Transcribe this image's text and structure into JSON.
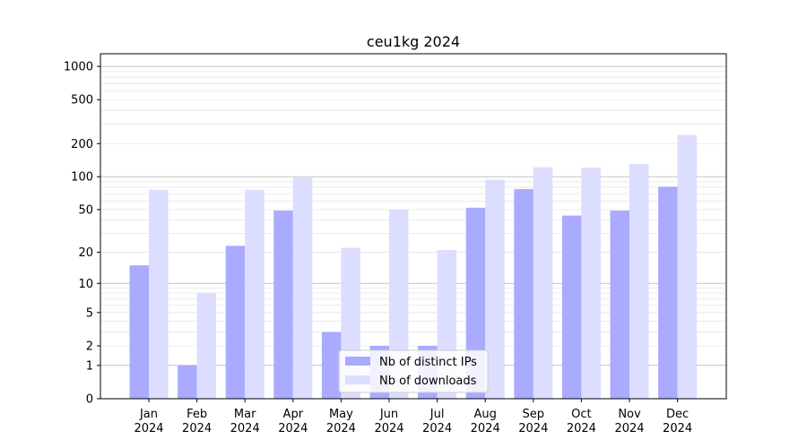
{
  "chart_data": {
    "type": "bar",
    "title": "ceu1kg 2024",
    "xlabel": "",
    "ylabel": "",
    "y_scale": "symlog",
    "ylim": [
      0,
      1300
    ],
    "y_ticks": [
      0,
      1,
      2,
      5,
      10,
      20,
      50,
      100,
      200,
      500,
      1000
    ],
    "categories": [
      [
        "Jan",
        "2024"
      ],
      [
        "Feb",
        "2024"
      ],
      [
        "Mar",
        "2024"
      ],
      [
        "Apr",
        "2024"
      ],
      [
        "May",
        "2024"
      ],
      [
        "Jun",
        "2024"
      ],
      [
        "Jul",
        "2024"
      ],
      [
        "Aug",
        "2024"
      ],
      [
        "Sep",
        "2024"
      ],
      [
        "Oct",
        "2024"
      ],
      [
        "Nov",
        "2024"
      ],
      [
        "Dec",
        "2024"
      ]
    ],
    "series": [
      {
        "name": "Nb of distinct IPs",
        "color": "#aaaaff",
        "values": [
          15,
          1,
          23,
          49,
          3,
          2,
          2,
          52,
          77,
          44,
          49,
          81
        ]
      },
      {
        "name": "Nb of downloads",
        "color": "#ddddff",
        "values": [
          76,
          8,
          76,
          98,
          22,
          50,
          21,
          94,
          122,
          121,
          131,
          240
        ]
      }
    ],
    "grid": true,
    "legend_position": "bottom-center"
  }
}
